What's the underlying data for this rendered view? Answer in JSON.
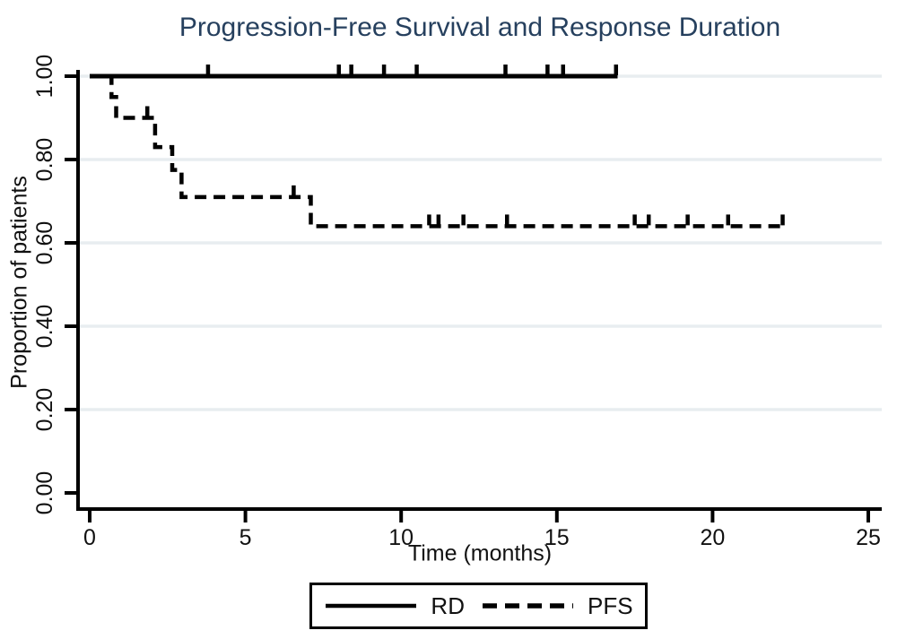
{
  "figure": {
    "background": "#ffffff",
    "title_color": "#26405e",
    "grid_color": "#e8edf0",
    "line_color": "#000000"
  },
  "chart_data": {
    "type": "line",
    "subtype": "kaplan-meier-step-curves",
    "title": "Progression-Free Survival and Response Duration",
    "xlabel": "Time (months)",
    "ylabel": "Proportion of patients",
    "xlim": [
      0,
      25
    ],
    "ylim": [
      0,
      1
    ],
    "xticks": [
      0,
      5,
      10,
      15,
      20,
      25
    ],
    "yticks": [
      0,
      0.2,
      0.4,
      0.6,
      0.8,
      1.0
    ],
    "ytick_labels": [
      "0.00",
      "0.20",
      "0.40",
      "0.60",
      "0.80",
      "1.00"
    ],
    "grid": "horizontal gridlines at y ticks, very light",
    "legend_position": "bottom-center boxed",
    "series": [
      {
        "name": "RD",
        "line_style": "solid",
        "color": "#000000",
        "steps": [
          [
            0,
            1.0
          ],
          [
            16.95,
            1.0
          ]
        ],
        "censor_ticks": [
          [
            3.8,
            1.0
          ],
          [
            8.0,
            1.0
          ],
          [
            8.4,
            1.0
          ],
          [
            9.45,
            1.0
          ],
          [
            10.5,
            1.0
          ],
          [
            13.35,
            1.0
          ],
          [
            14.7,
            1.0
          ],
          [
            15.2,
            1.0
          ],
          [
            16.9,
            1.0
          ]
        ]
      },
      {
        "name": "PFS",
        "line_style": "dashed",
        "color": "#000000",
        "steps": [
          [
            0,
            1.0
          ],
          [
            0.7,
            1.0
          ],
          [
            0.7,
            0.95
          ],
          [
            0.85,
            0.95
          ],
          [
            0.85,
            0.9
          ],
          [
            2.1,
            0.9
          ],
          [
            2.1,
            0.83
          ],
          [
            2.65,
            0.83
          ],
          [
            2.65,
            0.775
          ],
          [
            2.95,
            0.775
          ],
          [
            2.95,
            0.71
          ],
          [
            7.1,
            0.71
          ],
          [
            7.1,
            0.64
          ],
          [
            22.35,
            0.64
          ]
        ],
        "censor_ticks": [
          [
            1.85,
            0.9
          ],
          [
            6.55,
            0.71
          ],
          [
            10.9,
            0.64
          ],
          [
            11.2,
            0.64
          ],
          [
            12.0,
            0.64
          ],
          [
            13.4,
            0.64
          ],
          [
            17.5,
            0.64
          ],
          [
            17.95,
            0.64
          ],
          [
            19.2,
            0.64
          ],
          [
            20.5,
            0.64
          ],
          [
            22.25,
            0.64
          ]
        ]
      }
    ]
  },
  "legend": {
    "entries": [
      {
        "label": "RD",
        "style": "solid"
      },
      {
        "label": "PFS",
        "style": "dashed"
      }
    ]
  }
}
